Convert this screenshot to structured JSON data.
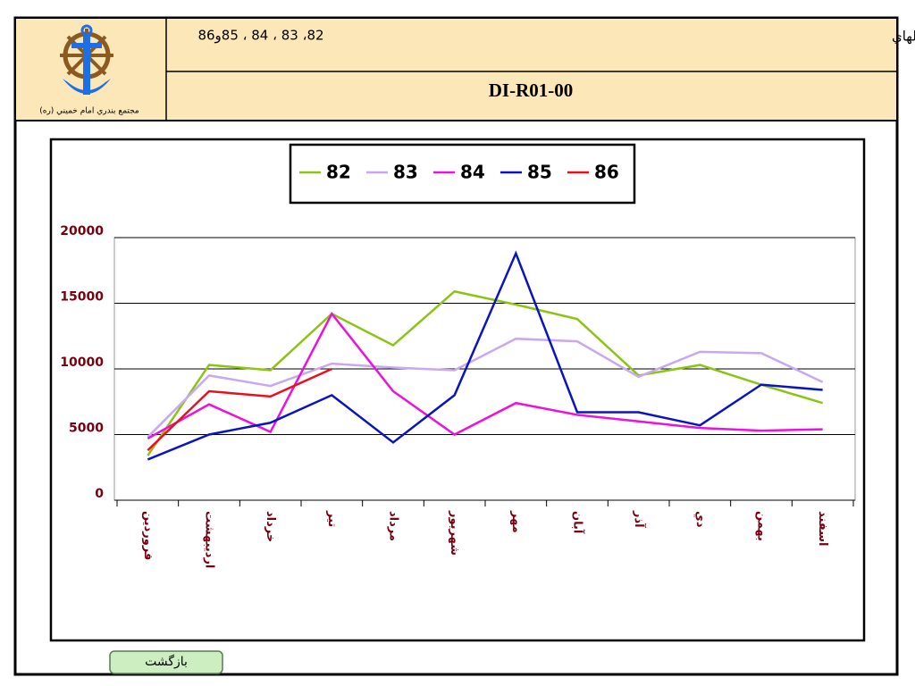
{
  "header": {
    "logo_caption": "مجتمع بندري امام خميني (ره)",
    "title": "نمودار مقايسه اي تخليه وبارگيري غير نفتي بندرآبادان و چوئبده درسالهاي",
    "years": "82، 83 ، 84 ، 85و86",
    "code": "DI-R01-00"
  },
  "chart_data": {
    "type": "line",
    "categories": [
      "فروردين",
      "ارديبهشت",
      "خرداد",
      "تير",
      "مرداد",
      "شهريور",
      "مهر",
      "آبان",
      "آذر",
      "دي",
      "بهمن",
      "اسفند"
    ],
    "series": [
      {
        "name": "82",
        "color": "#8cc414",
        "values": [
          3400,
          10300,
          9900,
          14200,
          11800,
          15900,
          14900,
          13800,
          9500,
          10300,
          8800,
          7400
        ]
      },
      {
        "name": "83",
        "color": "#c8a8f0",
        "values": [
          4800,
          9500,
          8700,
          10400,
          10100,
          9900,
          12300,
          12100,
          9400,
          11300,
          11200,
          9000
        ]
      },
      {
        "name": "84",
        "color": "#ee10dc",
        "values": [
          4700,
          7300,
          5200,
          14200,
          8300,
          5000,
          7400,
          6500,
          6000,
          5500,
          5300,
          5400
        ]
      },
      {
        "name": "85",
        "color": "#0a14c0",
        "values": [
          3100,
          5000,
          5900,
          8000,
          4400,
          8000,
          18800,
          6700,
          6700,
          5700,
          8800,
          8400
        ]
      },
      {
        "name": "86",
        "color": "#e8101c",
        "values": [
          3800,
          8300,
          7900,
          10000,
          null,
          null,
          null,
          null,
          null,
          null,
          null,
          null
        ]
      }
    ],
    "ylim": [
      0,
      20000
    ],
    "yticks": [
      0,
      5000,
      10000,
      15000,
      20000
    ],
    "grid": true,
    "legend": "top"
  },
  "button": {
    "label": "بازگشت"
  }
}
